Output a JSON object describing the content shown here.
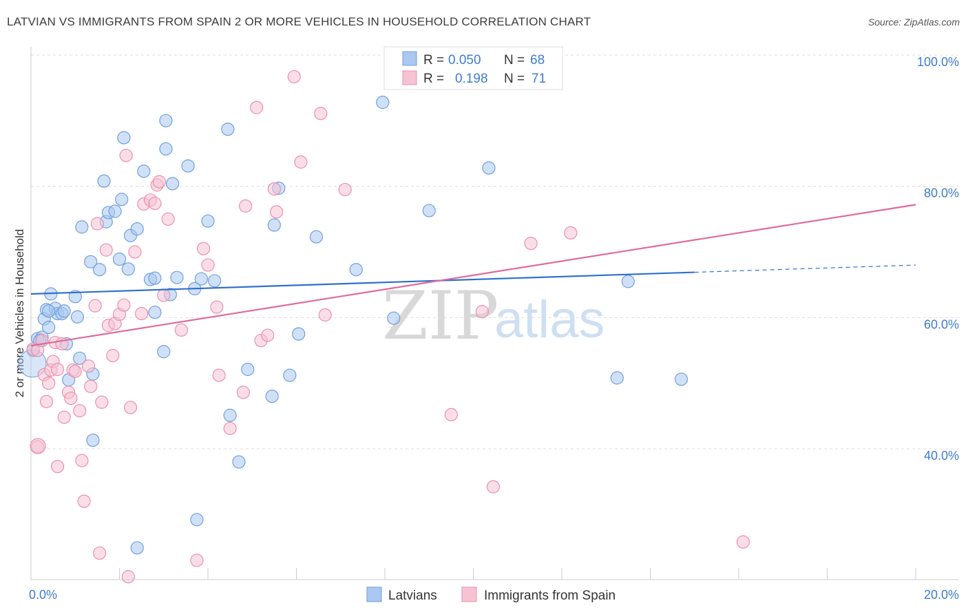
{
  "title": "LATVIAN VS IMMIGRANTS FROM SPAIN 2 OR MORE VEHICLES IN HOUSEHOLD CORRELATION CHART",
  "source": "Source: ZipAtlas.com",
  "watermark": {
    "zip": "ZIP",
    "atlas": "atlas"
  },
  "legend": {
    "rows": [
      {
        "r_label": "R =",
        "r_value": "0.050",
        "n_label": "N =",
        "n_value": "68"
      },
      {
        "r_label": "R =",
        "r_value": "0.198",
        "n_label": "N =",
        "n_value": "71"
      }
    ]
  },
  "bottom_legend": [
    "Latvians",
    "Immigrants from Spain"
  ],
  "colors": {
    "latvians_fill": "#aac8f0",
    "latvians_stroke": "#6f9fdc",
    "latvians_line": "#2e6fcc",
    "spain_fill": "#f6c3d3",
    "spain_stroke": "#ea8fae",
    "spain_line": "#e0699a",
    "grid": "#dddddd",
    "tick_text": "#3d7ccf"
  },
  "chart_data": {
    "type": "scatter",
    "title": "LATVIAN VS IMMIGRANTS FROM SPAIN 2 OR MORE VEHICLES IN HOUSEHOLD CORRELATION CHART",
    "xlabel": "",
    "ylabel": "2 or more Vehicles in Household",
    "xlim": [
      0,
      20
    ],
    "ylim": [
      20,
      102
    ],
    "x_ticks": [
      "0.0%",
      "20.0%"
    ],
    "y_ticks": [
      {
        "value": 40,
        "label": "40.0%"
      },
      {
        "value": 60,
        "label": "60.0%"
      },
      {
        "value": 80,
        "label": "80.0%"
      },
      {
        "value": 100,
        "label": "100.0%"
      }
    ],
    "grid": true,
    "legend_position": "top-center",
    "series": [
      {
        "name": "Latvians",
        "trend": {
          "x0": 0,
          "y0": 63.6,
          "x1": 15,
          "y1": 66.9,
          "dashed_to": 20,
          "dashed_y": 68.0
        },
        "points": [
          [
            0.05,
            55.0
          ],
          [
            0.15,
            56.8
          ],
          [
            0.25,
            57.0
          ],
          [
            0.3,
            59.8
          ],
          [
            0.35,
            61.2
          ],
          [
            0.4,
            58.5
          ],
          [
            0.45,
            63.6
          ],
          [
            0.55,
            61.4
          ],
          [
            0.6,
            60.6
          ],
          [
            0.7,
            60.6
          ],
          [
            0.75,
            61.0
          ],
          [
            0.8,
            56.0
          ],
          [
            0.85,
            50.5
          ],
          [
            1.0,
            63.2
          ],
          [
            1.05,
            60.1
          ],
          [
            1.15,
            73.8
          ],
          [
            1.35,
            68.5
          ],
          [
            1.4,
            51.4
          ],
          [
            1.55,
            67.3
          ],
          [
            1.65,
            80.8
          ],
          [
            1.7,
            74.6
          ],
          [
            1.75,
            76.0
          ],
          [
            1.9,
            76.2
          ],
          [
            2.0,
            68.9
          ],
          [
            2.05,
            78.0
          ],
          [
            2.1,
            87.4
          ],
          [
            2.2,
            67.4
          ],
          [
            2.25,
            72.5
          ],
          [
            2.4,
            73.5
          ],
          [
            2.55,
            82.3
          ],
          [
            2.7,
            65.8
          ],
          [
            2.8,
            60.8
          ],
          [
            3.0,
            54.8
          ],
          [
            3.05,
            90.0
          ],
          [
            3.05,
            85.7
          ],
          [
            3.15,
            63.5
          ],
          [
            3.2,
            80.4
          ],
          [
            3.3,
            66.1
          ],
          [
            3.55,
            83.1
          ],
          [
            3.7,
            64.4
          ],
          [
            3.85,
            65.9
          ],
          [
            4.0,
            74.7
          ],
          [
            4.15,
            65.6
          ],
          [
            4.45,
            88.7
          ],
          [
            4.5,
            45.1
          ],
          [
            4.7,
            38.0
          ],
          [
            4.9,
            52.1
          ],
          [
            5.45,
            48.0
          ],
          [
            5.5,
            74.1
          ],
          [
            5.6,
            79.7
          ],
          [
            5.85,
            51.2
          ],
          [
            6.05,
            57.5
          ],
          [
            6.45,
            72.3
          ],
          [
            7.35,
            67.3
          ],
          [
            7.95,
            92.8
          ],
          [
            8.2,
            59.9
          ],
          [
            9.0,
            76.3
          ],
          [
            10.35,
            82.8
          ],
          [
            13.25,
            50.8
          ],
          [
            13.5,
            65.5
          ],
          [
            14.7,
            50.6
          ],
          [
            1.4,
            41.3
          ],
          [
            3.75,
            29.2
          ],
          [
            2.4,
            24.9
          ],
          [
            1.1,
            53.8
          ],
          [
            0.4,
            61.0
          ],
          [
            0.2,
            56.5
          ],
          [
            2.8,
            66.0
          ]
        ]
      },
      {
        "name": "Immigrants from Spain",
        "trend": {
          "x0": 0,
          "y0": 55.7,
          "x1": 20,
          "y1": 77.2
        },
        "points": [
          [
            0.05,
            55.2
          ],
          [
            0.15,
            55.0
          ],
          [
            0.25,
            56.5
          ],
          [
            0.3,
            51.3
          ],
          [
            0.35,
            47.2
          ],
          [
            0.4,
            50.0
          ],
          [
            0.45,
            52.0
          ],
          [
            0.5,
            53.3
          ],
          [
            0.55,
            56.2
          ],
          [
            0.6,
            37.3
          ],
          [
            0.7,
            56.0
          ],
          [
            0.75,
            44.8
          ],
          [
            0.85,
            48.6
          ],
          [
            0.9,
            47.7
          ],
          [
            0.95,
            52.0
          ],
          [
            1.0,
            51.8
          ],
          [
            1.1,
            45.8
          ],
          [
            1.15,
            38.2
          ],
          [
            1.2,
            32.0
          ],
          [
            1.3,
            52.6
          ],
          [
            1.35,
            49.5
          ],
          [
            1.45,
            61.8
          ],
          [
            1.5,
            74.3
          ],
          [
            1.55,
            24.1
          ],
          [
            1.6,
            47.1
          ],
          [
            1.7,
            70.3
          ],
          [
            1.75,
            58.8
          ],
          [
            1.85,
            54.2
          ],
          [
            1.9,
            59.1
          ],
          [
            2.0,
            60.5
          ],
          [
            2.1,
            61.9
          ],
          [
            2.15,
            84.7
          ],
          [
            2.25,
            46.3
          ],
          [
            2.35,
            70.0
          ],
          [
            2.5,
            60.6
          ],
          [
            2.55,
            77.3
          ],
          [
            2.7,
            77.9
          ],
          [
            2.8,
            77.4
          ],
          [
            2.85,
            80.2
          ],
          [
            2.9,
            80.7
          ],
          [
            3.0,
            63.4
          ],
          [
            3.1,
            75.0
          ],
          [
            3.4,
            58.1
          ],
          [
            3.75,
            23.0
          ],
          [
            3.9,
            70.5
          ],
          [
            4.0,
            68.0
          ],
          [
            4.2,
            61.6
          ],
          [
            4.25,
            51.2
          ],
          [
            4.5,
            43.1
          ],
          [
            4.8,
            48.6
          ],
          [
            4.85,
            77.0
          ],
          [
            5.1,
            92.0
          ],
          [
            5.2,
            56.5
          ],
          [
            5.35,
            57.3
          ],
          [
            5.5,
            79.6
          ],
          [
            5.55,
            76.1
          ],
          [
            5.95,
            96.7
          ],
          [
            6.1,
            83.7
          ],
          [
            6.55,
            91.1
          ],
          [
            6.65,
            60.4
          ],
          [
            7.1,
            79.5
          ],
          [
            8.4,
            100.0
          ],
          [
            9.5,
            45.2
          ],
          [
            10.2,
            60.9
          ],
          [
            10.45,
            34.2
          ],
          [
            11.3,
            71.3
          ],
          [
            12.2,
            72.9
          ],
          [
            16.1,
            25.8
          ],
          [
            0.15,
            40.3
          ],
          [
            2.2,
            20.5
          ],
          [
            0.6,
            52.1
          ]
        ]
      }
    ]
  }
}
